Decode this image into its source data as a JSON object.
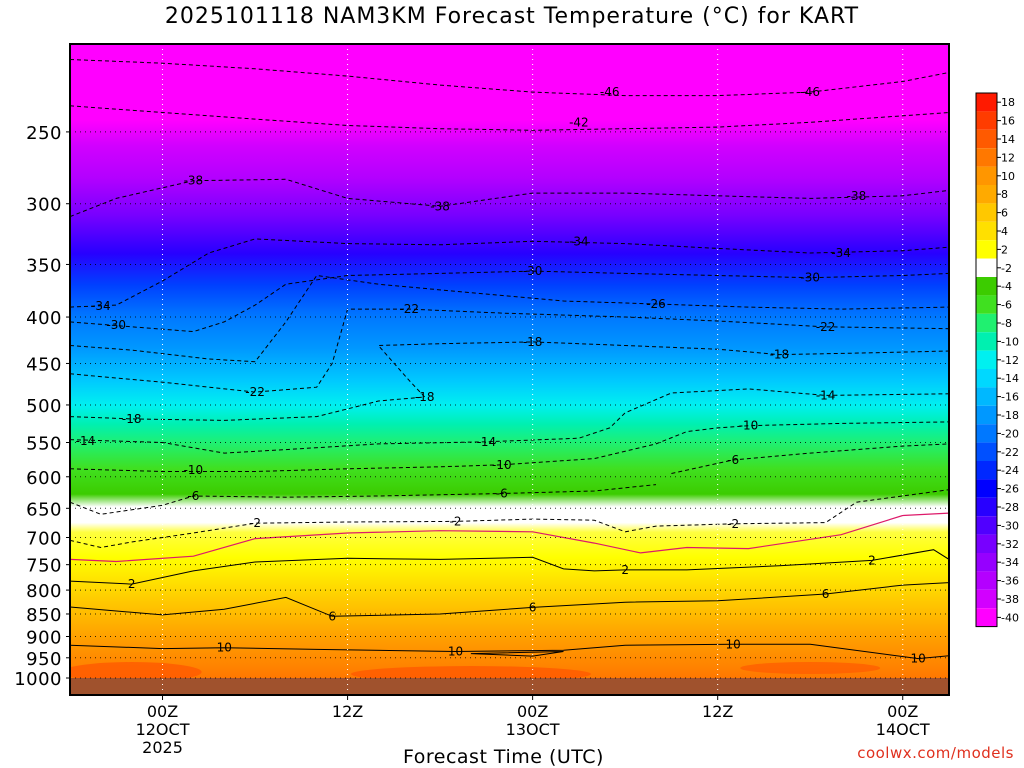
{
  "title": "2025101118 NAM3KM Forecast Temperature (°C) for KART",
  "credit": "coolwx.com/models",
  "chart_data": {
    "type": "heatmap",
    "title": "2025101118 NAM3KM Forecast Temperature (°C) for KART",
    "xlabel": "Forecast Time (UTC)",
    "ylabel": "",
    "y_scale": "log",
    "y_reversed": true,
    "ylim": [
      1000,
      200
    ],
    "y_ticks": [
      250,
      300,
      350,
      400,
      450,
      500,
      550,
      600,
      650,
      700,
      750,
      800,
      850,
      900,
      950,
      1000
    ],
    "x_hours": [
      -6,
      51
    ],
    "x_ticks": [
      {
        "hour": 0,
        "lines": [
          "00Z",
          "12OCT",
          "2025"
        ]
      },
      {
        "hour": 12,
        "lines": [
          "12Z"
        ]
      },
      {
        "hour": 24,
        "lines": [
          "00Z",
          "13OCT"
        ]
      },
      {
        "hour": 36,
        "lines": [
          "12Z"
        ]
      },
      {
        "hour": 48,
        "lines": [
          "00Z",
          "14OCT"
        ]
      }
    ],
    "grid": true,
    "colorbar": {
      "position": "right",
      "labels": [
        "18",
        "16",
        "14",
        "12",
        "10",
        "8",
        "6",
        "4",
        "2",
        "-2",
        "-4",
        "-6",
        "-8",
        "-10",
        "-12",
        "-14",
        "-16",
        "-18",
        "-20",
        "-22",
        "-24",
        "-26",
        "-28",
        "-30",
        "-32",
        "-34",
        "-36",
        "-38",
        "-40"
      ],
      "colors": [
        "#ff1a00",
        "#ff3c00",
        "#ff5a00",
        "#ff7800",
        "#ff9600",
        "#ffaa00",
        "#ffc800",
        "#ffe000",
        "#ffff00",
        "#ffffff",
        "#3ccc00",
        "#40e020",
        "#20f070",
        "#00f0b0",
        "#00f0f0",
        "#00d8ff",
        "#00b8ff",
        "#0098ff",
        "#0078ff",
        "#0050ff",
        "#0028ff",
        "#0000ff",
        "#2800ff",
        "#5000ff",
        "#7800ff",
        "#9600ff",
        "#b400ff",
        "#d200ff",
        "#ff00ff"
      ]
    },
    "contours": [
      {
        "value": -46,
        "dashed": true,
        "label": "-46",
        "label_at": [
          [
            29,
            226
          ],
          [
            42,
            226
          ]
        ],
        "points": [
          [
            -6,
            208
          ],
          [
            0,
            210
          ],
          [
            6,
            213
          ],
          [
            12,
            217
          ],
          [
            18,
            222
          ],
          [
            24,
            226
          ],
          [
            30,
            228
          ],
          [
            36,
            228
          ],
          [
            42,
            226
          ],
          [
            48,
            220
          ],
          [
            51,
            215
          ]
        ]
      },
      {
        "value": -42,
        "dashed": true,
        "label": "-42",
        "label_at": [
          [
            27,
            244
          ]
        ],
        "points": [
          [
            -6,
            234
          ],
          [
            0,
            238
          ],
          [
            6,
            242
          ],
          [
            12,
            246
          ],
          [
            18,
            248
          ],
          [
            24,
            249
          ],
          [
            30,
            248
          ],
          [
            36,
            247
          ],
          [
            42,
            244
          ],
          [
            48,
            240
          ],
          [
            51,
            238
          ]
        ]
      },
      {
        "value": -38,
        "dashed": true,
        "label": "-38",
        "label_at": [
          [
            2,
            283
          ],
          [
            18,
            302
          ],
          [
            45,
            294
          ]
        ],
        "points": [
          [
            -6,
            310
          ],
          [
            -3,
            296
          ],
          [
            2,
            283
          ],
          [
            8,
            282
          ],
          [
            12,
            296
          ],
          [
            18,
            302
          ],
          [
            24,
            292
          ],
          [
            30,
            292
          ],
          [
            36,
            294
          ],
          [
            42,
            296
          ],
          [
            48,
            294
          ],
          [
            51,
            290
          ]
        ]
      },
      {
        "value": -34,
        "dashed": true,
        "label": "-34",
        "label_at": [
          [
            -4,
            389
          ],
          [
            27,
            330
          ],
          [
            44,
            340
          ]
        ],
        "points": [
          [
            -6,
            390
          ],
          [
            -3,
            388
          ],
          [
            0,
            365
          ],
          [
            3,
            340
          ],
          [
            6,
            328
          ],
          [
            12,
            332
          ],
          [
            18,
            333
          ],
          [
            24,
            330
          ],
          [
            30,
            332
          ],
          [
            36,
            336
          ],
          [
            42,
            340
          ],
          [
            48,
            338
          ],
          [
            51,
            335
          ]
        ]
      },
      {
        "value": -30,
        "dashed": true,
        "label": "-30",
        "label_at": [
          [
            -3,
            408
          ],
          [
            24,
            356
          ],
          [
            42,
            362
          ]
        ],
        "points": [
          [
            -6,
            405
          ],
          [
            -2,
            410
          ],
          [
            2,
            415
          ],
          [
            4,
            405
          ],
          [
            6,
            388
          ],
          [
            8,
            368
          ],
          [
            12,
            360
          ],
          [
            18,
            358
          ],
          [
            24,
            356
          ],
          [
            30,
            358
          ],
          [
            36,
            360
          ],
          [
            42,
            362
          ],
          [
            48,
            360
          ],
          [
            51,
            358
          ]
        ]
      },
      {
        "value": -26,
        "dashed": true,
        "label": "-26",
        "label_at": [
          [
            32,
            387
          ]
        ],
        "points": [
          [
            -6,
            430
          ],
          [
            -2,
            435
          ],
          [
            3,
            445
          ],
          [
            6,
            448
          ],
          [
            8,
            405
          ],
          [
            10,
            360
          ],
          [
            14,
            368
          ],
          [
            20,
            376
          ],
          [
            26,
            384
          ],
          [
            32,
            387
          ],
          [
            38,
            390
          ],
          [
            44,
            392
          ],
          [
            51,
            390
          ]
        ]
      },
      {
        "value": -22,
        "dashed": true,
        "label": "-22",
        "label_at": [
          [
            6,
            484
          ],
          [
            16,
            392
          ],
          [
            43,
            410
          ]
        ],
        "points": [
          [
            -6,
            462
          ],
          [
            0,
            472
          ],
          [
            6,
            484
          ],
          [
            10,
            478
          ],
          [
            11,
            450
          ],
          [
            12,
            392
          ],
          [
            16,
            392
          ],
          [
            22,
            396
          ],
          [
            30,
            400
          ],
          [
            36,
            404
          ],
          [
            43,
            410
          ],
          [
            51,
            412
          ]
        ]
      },
      {
        "value": -18,
        "dashed": true,
        "label": "-18",
        "label_at": [
          [
            -2,
            518
          ],
          [
            17,
            490
          ],
          [
            24,
            426
          ],
          [
            40,
            440
          ]
        ],
        "points": [
          [
            -6,
            515
          ],
          [
            -2,
            518
          ],
          [
            4,
            520
          ],
          [
            10,
            515
          ],
          [
            12,
            505
          ],
          [
            14,
            495
          ],
          [
            17,
            490
          ],
          [
            16,
            470
          ],
          [
            14,
            430
          ],
          [
            18,
            428
          ],
          [
            24,
            426
          ],
          [
            30,
            430
          ],
          [
            36,
            434
          ],
          [
            40,
            440
          ],
          [
            46,
            438
          ],
          [
            51,
            436
          ]
        ]
      },
      {
        "value": -14,
        "dashed": true,
        "label": "-14",
        "label_at": [
          [
            -5,
            548
          ],
          [
            21,
            549
          ],
          [
            43,
            488
          ]
        ],
        "points": [
          [
            -6,
            546
          ],
          [
            0,
            550
          ],
          [
            4,
            565
          ],
          [
            8,
            560
          ],
          [
            14,
            552
          ],
          [
            21,
            549
          ],
          [
            27,
            544
          ],
          [
            29,
            530
          ],
          [
            30,
            510
          ],
          [
            33,
            485
          ],
          [
            38,
            480
          ],
          [
            43,
            488
          ],
          [
            51,
            486
          ]
        ]
      },
      {
        "value": -10,
        "dashed": true,
        "label": "-10",
        "label_at": [
          [
            2,
            590
          ],
          [
            22,
            582
          ],
          [
            38,
            527
          ]
        ],
        "points": [
          [
            -6,
            588
          ],
          [
            0,
            592
          ],
          [
            6,
            592
          ],
          [
            12,
            588
          ],
          [
            18,
            585
          ],
          [
            22,
            582
          ],
          [
            28,
            573
          ],
          [
            32,
            552
          ],
          [
            34,
            535
          ],
          [
            36,
            530
          ],
          [
            38,
            527
          ],
          [
            44,
            524
          ],
          [
            51,
            522
          ]
        ]
      },
      {
        "value": -6,
        "dashed": true,
        "label": "-6",
        "label_at": [
          [
            37,
            575
          ]
        ],
        "points": [
          [
            33,
            595
          ],
          [
            37,
            575
          ],
          [
            42,
            565
          ],
          [
            48,
            555
          ],
          [
            51,
            552
          ]
        ]
      },
      {
        "value": -6,
        "dashed": true,
        "label": "-6",
        "label_at": [
          [
            2,
            630
          ],
          [
            22,
            626
          ]
        ],
        "points": [
          [
            -6,
            640
          ],
          [
            -4,
            660
          ],
          [
            0,
            645
          ],
          [
            2,
            630
          ],
          [
            8,
            632
          ],
          [
            14,
            630
          ],
          [
            22,
            626
          ],
          [
            28,
            622
          ],
          [
            32,
            612
          ]
        ]
      },
      {
        "value": -2,
        "dashed": true,
        "label": "-2",
        "label_at": [
          [
            6,
            675
          ],
          [
            19,
            672
          ],
          [
            37,
            676
          ]
        ],
        "points": [
          [
            -6,
            705
          ],
          [
            -4,
            718
          ],
          [
            -2,
            708
          ],
          [
            2,
            692
          ],
          [
            6,
            675
          ],
          [
            12,
            673
          ],
          [
            19,
            672
          ],
          [
            24,
            668
          ],
          [
            28,
            670
          ],
          [
            30,
            690
          ],
          [
            32,
            680
          ],
          [
            37,
            676
          ],
          [
            43,
            674
          ],
          [
            45,
            640
          ],
          [
            51,
            620
          ]
        ]
      },
      {
        "value": 0,
        "dashed": false,
        "color": "#dd1a6a",
        "label": "",
        "label_at": [],
        "points": [
          [
            -6,
            740
          ],
          [
            -3,
            744
          ],
          [
            2,
            734
          ],
          [
            6,
            702
          ],
          [
            12,
            692
          ],
          [
            18,
            688
          ],
          [
            24,
            690
          ],
          [
            28,
            710
          ],
          [
            31,
            728
          ],
          [
            34,
            718
          ],
          [
            38,
            720
          ],
          [
            44,
            695
          ],
          [
            48,
            662
          ],
          [
            51,
            658
          ]
        ]
      },
      {
        "value": 2,
        "dashed": false,
        "label": "2",
        "label_at": [
          [
            -2,
            788
          ],
          [
            30,
            760
          ],
          [
            46,
            742
          ]
        ],
        "points": [
          [
            -6,
            782
          ],
          [
            -2,
            788
          ],
          [
            2,
            762
          ],
          [
            6,
            745
          ],
          [
            12,
            738
          ],
          [
            18,
            740
          ],
          [
            24,
            736
          ],
          [
            26,
            758
          ],
          [
            28,
            762
          ],
          [
            30,
            760
          ],
          [
            34,
            760
          ],
          [
            40,
            752
          ],
          [
            46,
            742
          ],
          [
            50,
            722
          ],
          [
            51,
            740
          ]
        ]
      },
      {
        "value": 6,
        "dashed": false,
        "label": "6",
        "label_at": [
          [
            11,
            855
          ],
          [
            24,
            836
          ],
          [
            43,
            808
          ]
        ],
        "points": [
          [
            -6,
            835
          ],
          [
            0,
            852
          ],
          [
            4,
            840
          ],
          [
            8,
            815
          ],
          [
            11,
            855
          ],
          [
            18,
            850
          ],
          [
            24,
            836
          ],
          [
            30,
            825
          ],
          [
            36,
            822
          ],
          [
            43,
            808
          ],
          [
            48,
            790
          ],
          [
            51,
            785
          ]
        ]
      },
      {
        "value": 10,
        "dashed": false,
        "label": "10",
        "label_at": [
          [
            4,
            926
          ],
          [
            19,
            935
          ],
          [
            37,
            918
          ],
          [
            49,
            952
          ]
        ],
        "points": [
          [
            -6,
            920
          ],
          [
            0,
            928
          ],
          [
            4,
            926
          ],
          [
            10,
            930
          ],
          [
            19,
            935
          ],
          [
            26,
            932
          ],
          [
            30,
            920
          ],
          [
            37,
            918
          ],
          [
            42,
            918
          ],
          [
            49,
            952
          ],
          [
            51,
            945
          ]
        ]
      },
      {
        "value": 10,
        "dashed": false,
        "label": "",
        "label_at": [],
        "points": [
          [
            20,
            940
          ],
          [
            26,
            935
          ],
          [
            24,
            946
          ],
          [
            20,
            940
          ]
        ]
      }
    ]
  }
}
